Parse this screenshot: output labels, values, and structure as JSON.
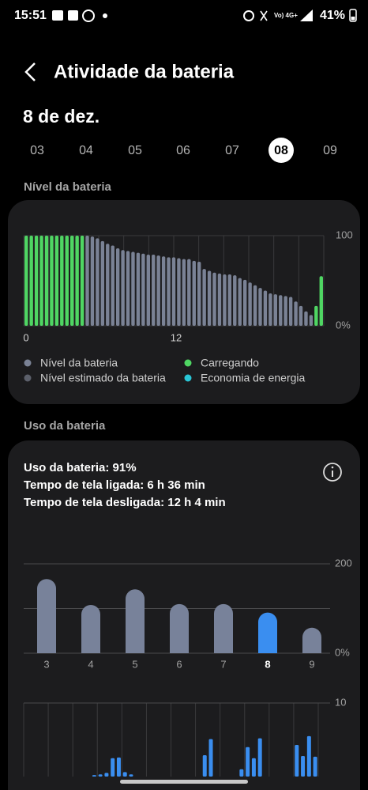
{
  "status_bar": {
    "time": "15:51",
    "battery": "41%"
  },
  "header": {
    "title": "Atividade da bateria"
  },
  "date": "8 de dez.",
  "days": {
    "items": [
      "03",
      "04",
      "05",
      "06",
      "07",
      "08",
      "09"
    ],
    "selected": "08"
  },
  "level_section": {
    "title": "Nível da bateria"
  },
  "level_chart": {
    "type": "bar",
    "series": [
      {
        "name": "Nível da bateria",
        "color": "#7a8295",
        "values": [
          null,
          null,
          null,
          null,
          null,
          null,
          null,
          null,
          null,
          null,
          null,
          null,
          100,
          99,
          97,
          94,
          91,
          89,
          86,
          84,
          83,
          82,
          81,
          80,
          79,
          79,
          78,
          77,
          76,
          76,
          75,
          74,
          74,
          72,
          71,
          63,
          61,
          59,
          58,
          57,
          57,
          56,
          53,
          51,
          48,
          45,
          42,
          39,
          36,
          35,
          34,
          33,
          32,
          27,
          22,
          16,
          12,
          null,
          null
        ]
      },
      {
        "name": "Nível estimado da bateria",
        "color": "#5c606b",
        "values": [
          null,
          null,
          null,
          null,
          null,
          null,
          null,
          null,
          null,
          null,
          null,
          null,
          null,
          null,
          null,
          null,
          null,
          null,
          null,
          null,
          null,
          null,
          null,
          null,
          null,
          null,
          null,
          null,
          null,
          null,
          null,
          null,
          null,
          null,
          null,
          null,
          null,
          null,
          null,
          null,
          null,
          null,
          null,
          null,
          null,
          null,
          null,
          null,
          null,
          null,
          null,
          null,
          null,
          null,
          null,
          null,
          null,
          null,
          null
        ]
      },
      {
        "name": "Carregando",
        "color": "#4fd663",
        "values": [
          100,
          100,
          100,
          100,
          100,
          100,
          100,
          100,
          100,
          100,
          100,
          100,
          null,
          null,
          null,
          null,
          null,
          null,
          null,
          null,
          null,
          null,
          null,
          null,
          null,
          null,
          null,
          null,
          null,
          null,
          null,
          null,
          null,
          null,
          null,
          null,
          null,
          null,
          null,
          null,
          null,
          null,
          null,
          null,
          null,
          null,
          null,
          null,
          null,
          null,
          null,
          null,
          null,
          null,
          null,
          null,
          null,
          22,
          55
        ]
      },
      {
        "name": "Economia de energia",
        "color": "#29c6d6",
        "values": [
          null,
          null,
          null,
          null,
          null,
          null,
          null,
          null,
          null,
          null,
          null,
          null,
          null,
          null,
          null,
          null,
          null,
          null,
          null,
          null,
          null,
          null,
          null,
          null,
          null,
          null,
          null,
          null,
          null,
          null,
          null,
          null,
          null,
          null,
          null,
          null,
          null,
          null,
          null,
          null,
          null,
          null,
          null,
          null,
          null,
          null,
          null,
          null,
          null,
          null,
          null,
          null,
          null,
          null,
          null,
          null,
          null,
          null,
          null
        ]
      }
    ],
    "xlim": [
      0,
      24
    ],
    "xticks": [
      0,
      12
    ],
    "ylim": [
      0,
      100
    ],
    "yticks": [
      {
        "value": 0,
        "label": "0%"
      },
      100
    ]
  },
  "usage_section": {
    "title": "Uso da bateria"
  },
  "usage_summary": [
    "Uso da bateria: 91%",
    "Tempo de tela ligada: 6 h 36 min",
    "Tempo de tela desligada: 12 h 4 min"
  ],
  "usage_chart": {
    "type": "bar",
    "categories": [
      "3",
      "4",
      "5",
      "6",
      "7",
      "8",
      "9"
    ],
    "values": [
      166,
      108,
      143,
      110,
      110,
      91,
      57
    ],
    "color": "#78829a",
    "selected": "8",
    "selected_color": "#3a8ef0",
    "ylim": [
      0,
      200
    ],
    "yticks": [
      {
        "value": 0,
        "label": "0%"
      },
      {
        "value": 100,
        "label": null
      },
      200
    ]
  },
  "screen_chart": {
    "type": "bar",
    "color": "#3a8ef0",
    "values": [
      0,
      0,
      0,
      0,
      0,
      0,
      0,
      0,
      0,
      0,
      0,
      0.2,
      0.3,
      0.5,
      2.5,
      2.6,
      0.6,
      0.3,
      0,
      0,
      0,
      0,
      0,
      0,
      0,
      0,
      0,
      0,
      0,
      2.9,
      5.1,
      0,
      0,
      0,
      0,
      1,
      4,
      2.5,
      5.2,
      0,
      0,
      0,
      0,
      0,
      4.3,
      2.8,
      5.5,
      2.7
    ],
    "ylim": [
      0,
      10
    ],
    "yticks": [
      10
    ]
  }
}
